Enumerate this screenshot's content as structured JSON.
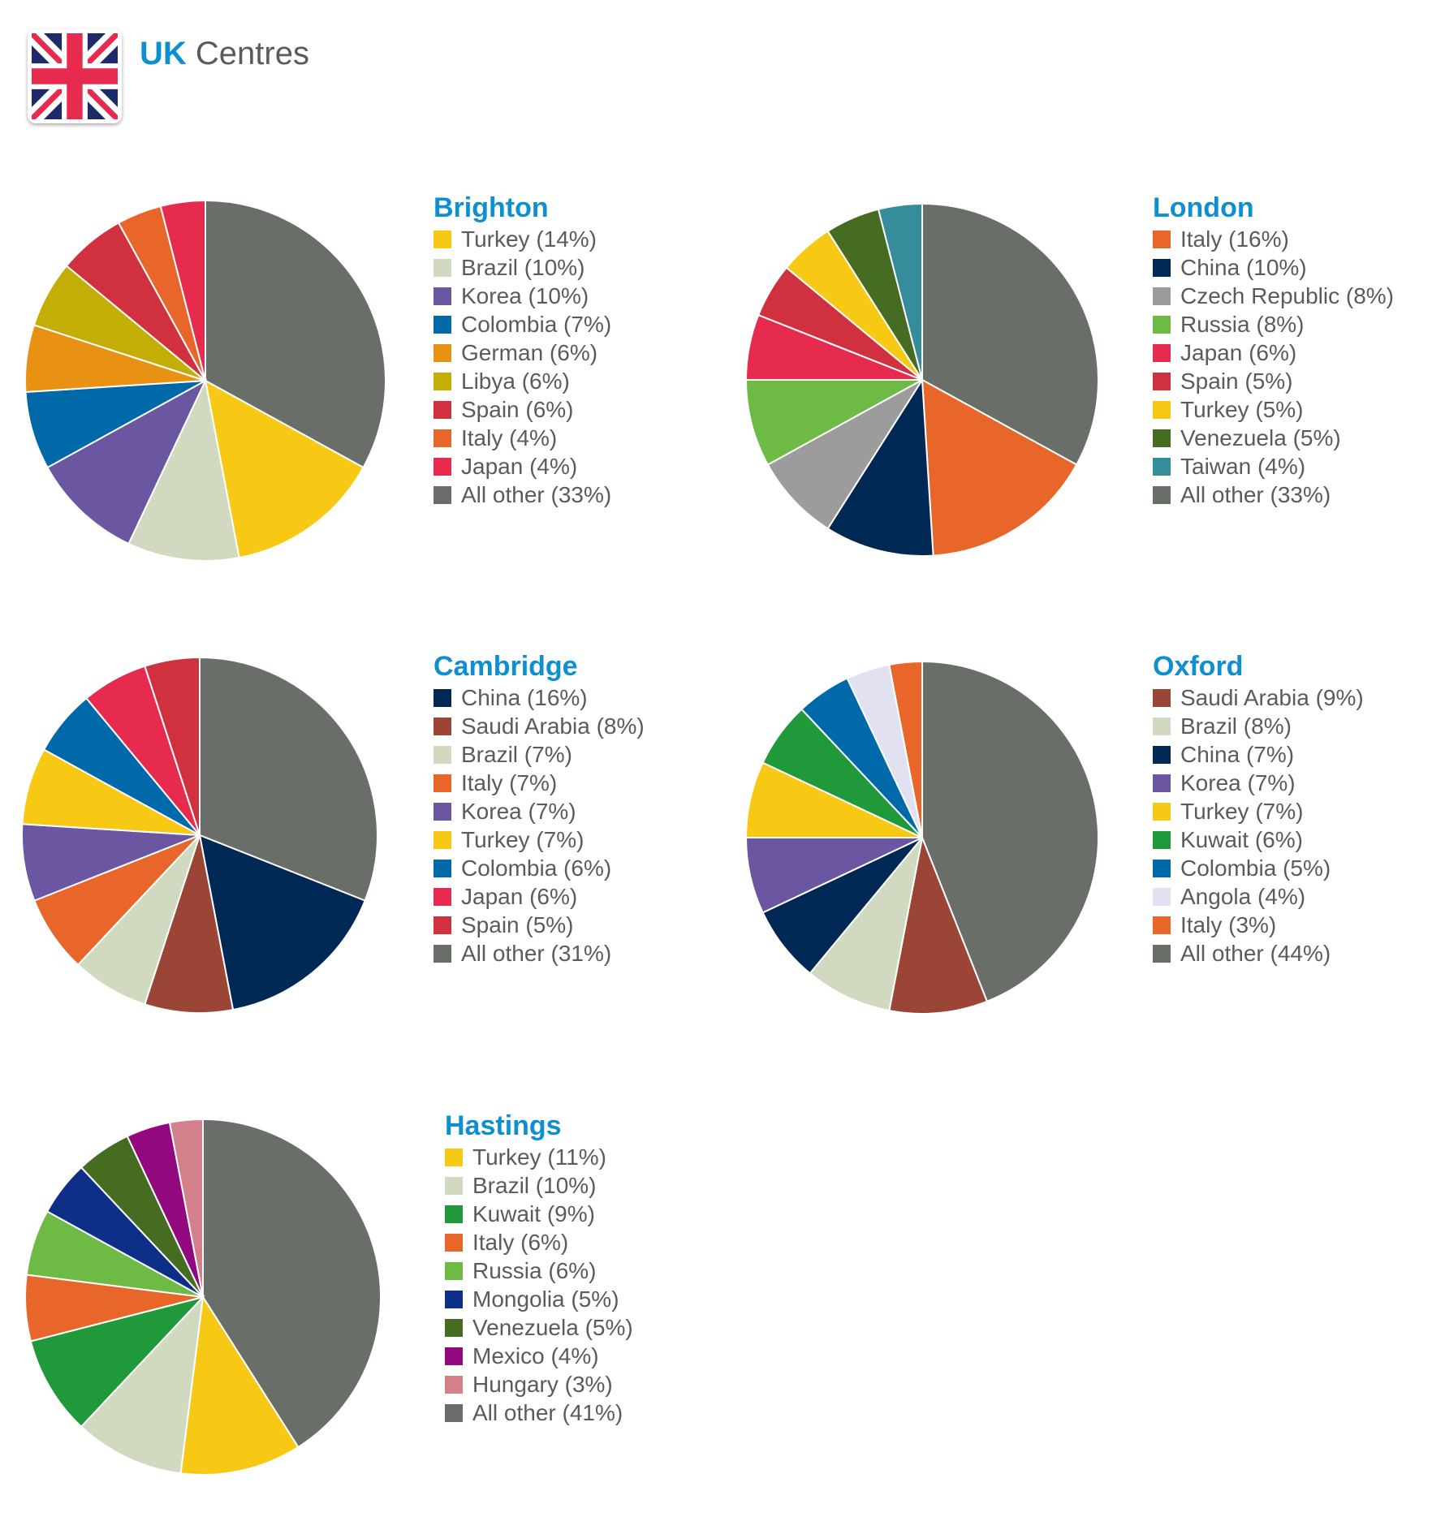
{
  "header": {
    "title_accent": "UK",
    "title_rest": " Centres",
    "flag_icon": "uk-flag-icon"
  },
  "chart_data": [
    {
      "type": "pie",
      "title": "Brighton",
      "slices": [
        {
          "label": "Turkey (14%)",
          "value": 14,
          "color": "#f8c914"
        },
        {
          "label": "Brazil (10%)",
          "value": 10,
          "color": "#d1dac0"
        },
        {
          "label": "Korea (10%)",
          "value": 10,
          "color": "#6a56a1"
        },
        {
          "label": "Colombia (7%)",
          "value": 7,
          "color": "#0069a9"
        },
        {
          "label": "German (6%)",
          "value": 6,
          "color": "#e99112"
        },
        {
          "label": "Libya (6%)",
          "value": 6,
          "color": "#c3ae05"
        },
        {
          "label": "Spain (6%)",
          "value": 6,
          "color": "#d1313f"
        },
        {
          "label": "Italy (4%)",
          "value": 4,
          "color": "#e9662b"
        },
        {
          "label": "Japan (4%)",
          "value": 4,
          "color": "#e62b4f"
        },
        {
          "label": "All other (33%)",
          "value": 33,
          "color": "#6a6e68"
        }
      ]
    },
    {
      "type": "pie",
      "title": "London",
      "slices": [
        {
          "label": "Italy (16%)",
          "value": 16,
          "color": "#e9662b"
        },
        {
          "label": "China (10%)",
          "value": 10,
          "color": "#002855"
        },
        {
          "label": "Czech Republic (8%)",
          "value": 8,
          "color": "#9c9c9c"
        },
        {
          "label": "Russia (8%)",
          "value": 8,
          "color": "#6dba45"
        },
        {
          "label": "Japan (6%)",
          "value": 6,
          "color": "#e62b4f"
        },
        {
          "label": "Spain (5%)",
          "value": 5,
          "color": "#d1313f"
        },
        {
          "label": "Turkey (5%)",
          "value": 5,
          "color": "#f8c914"
        },
        {
          "label": "Venezuela (5%)",
          "value": 5,
          "color": "#456c21"
        },
        {
          "label": "Taiwan (4%)",
          "value": 4,
          "color": "#368d9a"
        },
        {
          "label": "All other (33%)",
          "value": 33,
          "color": "#6a6e68"
        }
      ]
    },
    {
      "type": "pie",
      "title": "Cambridge",
      "slices": [
        {
          "label": "China (16%)",
          "value": 16,
          "color": "#002855"
        },
        {
          "label": "Saudi Arabia (8%)",
          "value": 8,
          "color": "#9a4536"
        },
        {
          "label": "Brazil (7%)",
          "value": 7,
          "color": "#d1dac0"
        },
        {
          "label": "Italy (7%)",
          "value": 7,
          "color": "#e9662b"
        },
        {
          "label": "Korea (7%)",
          "value": 7,
          "color": "#6a56a1"
        },
        {
          "label": "Turkey (7%)",
          "value": 7,
          "color": "#f8c914"
        },
        {
          "label": "Colombia (6%)",
          "value": 6,
          "color": "#0069a9"
        },
        {
          "label": "Japan (6%)",
          "value": 6,
          "color": "#e62b4f"
        },
        {
          "label": "Spain (5%)",
          "value": 5,
          "color": "#d1313f"
        },
        {
          "label": "All other (31%)",
          "value": 31,
          "color": "#6a6e68"
        }
      ]
    },
    {
      "type": "pie",
      "title": "Oxford",
      "slices": [
        {
          "label": "Saudi Arabia (9%)",
          "value": 9,
          "color": "#9a4536"
        },
        {
          "label": "Brazil (8%)",
          "value": 8,
          "color": "#d1dac0"
        },
        {
          "label": "China (7%)",
          "value": 7,
          "color": "#002855"
        },
        {
          "label": "Korea (7%)",
          "value": 7,
          "color": "#6a56a1"
        },
        {
          "label": "Turkey (7%)",
          "value": 7,
          "color": "#f8c914"
        },
        {
          "label": "Kuwait (6%)",
          "value": 6,
          "color": "#20993a"
        },
        {
          "label": "Colombia (5%)",
          "value": 5,
          "color": "#0069a9"
        },
        {
          "label": "Angola (4%)",
          "value": 4,
          "color": "#e2e1f1"
        },
        {
          "label": "Italy (3%)",
          "value": 3,
          "color": "#e9662b"
        },
        {
          "label": "All other (44%)",
          "value": 44,
          "color": "#6a6e68"
        }
      ]
    },
    {
      "type": "pie",
      "title": "Hastings",
      "slices": [
        {
          "label": "Turkey (11%)",
          "value": 11,
          "color": "#f8c914"
        },
        {
          "label": "Brazil (10%)",
          "value": 10,
          "color": "#d1dac0"
        },
        {
          "label": "Kuwait (9%)",
          "value": 9,
          "color": "#20993a"
        },
        {
          "label": "Italy (6%)",
          "value": 6,
          "color": "#e9662b"
        },
        {
          "label": "Russia (6%)",
          "value": 6,
          "color": "#6dba45"
        },
        {
          "label": "Mongolia (5%)",
          "value": 5,
          "color": "#0e2f87"
        },
        {
          "label": "Venezuela (5%)",
          "value": 5,
          "color": "#456c21"
        },
        {
          "label": "Mexico (4%)",
          "value": 4,
          "color": "#92087f"
        },
        {
          "label": "Hungary (3%)",
          "value": 3,
          "color": "#d4808b"
        },
        {
          "label": "All other (41%)",
          "value": 41,
          "color": "#6a6e68"
        }
      ]
    }
  ]
}
